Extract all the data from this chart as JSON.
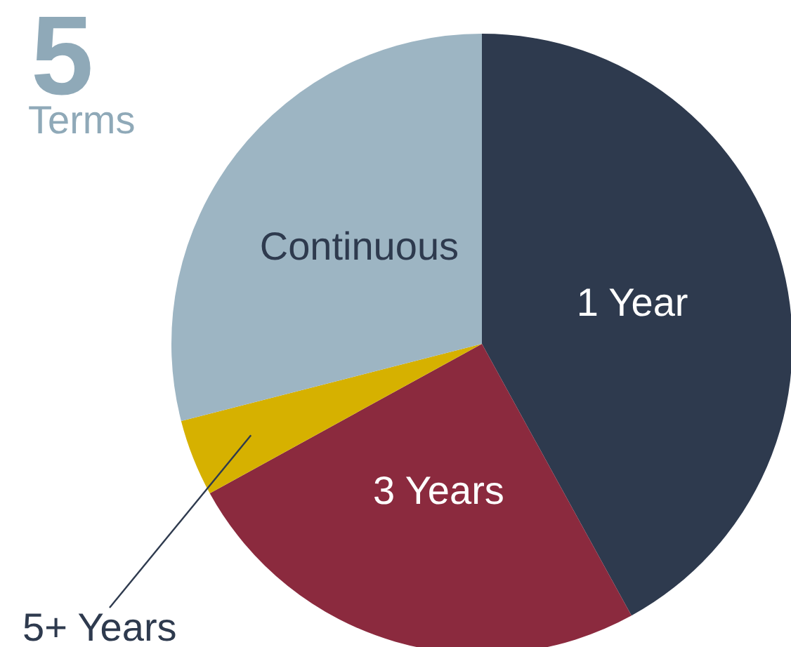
{
  "chart_data": {
    "type": "pie",
    "title": "5",
    "subtitle": "Terms",
    "categories": [
      "1 Year",
      "3 Years",
      "5+ Years",
      "Continuous"
    ],
    "values": [
      42,
      25,
      4,
      29
    ],
    "colors": [
      "#2e3a4e",
      "#8b2a3e",
      "#d6b100",
      "#9db5c3"
    ],
    "legend": false
  }
}
